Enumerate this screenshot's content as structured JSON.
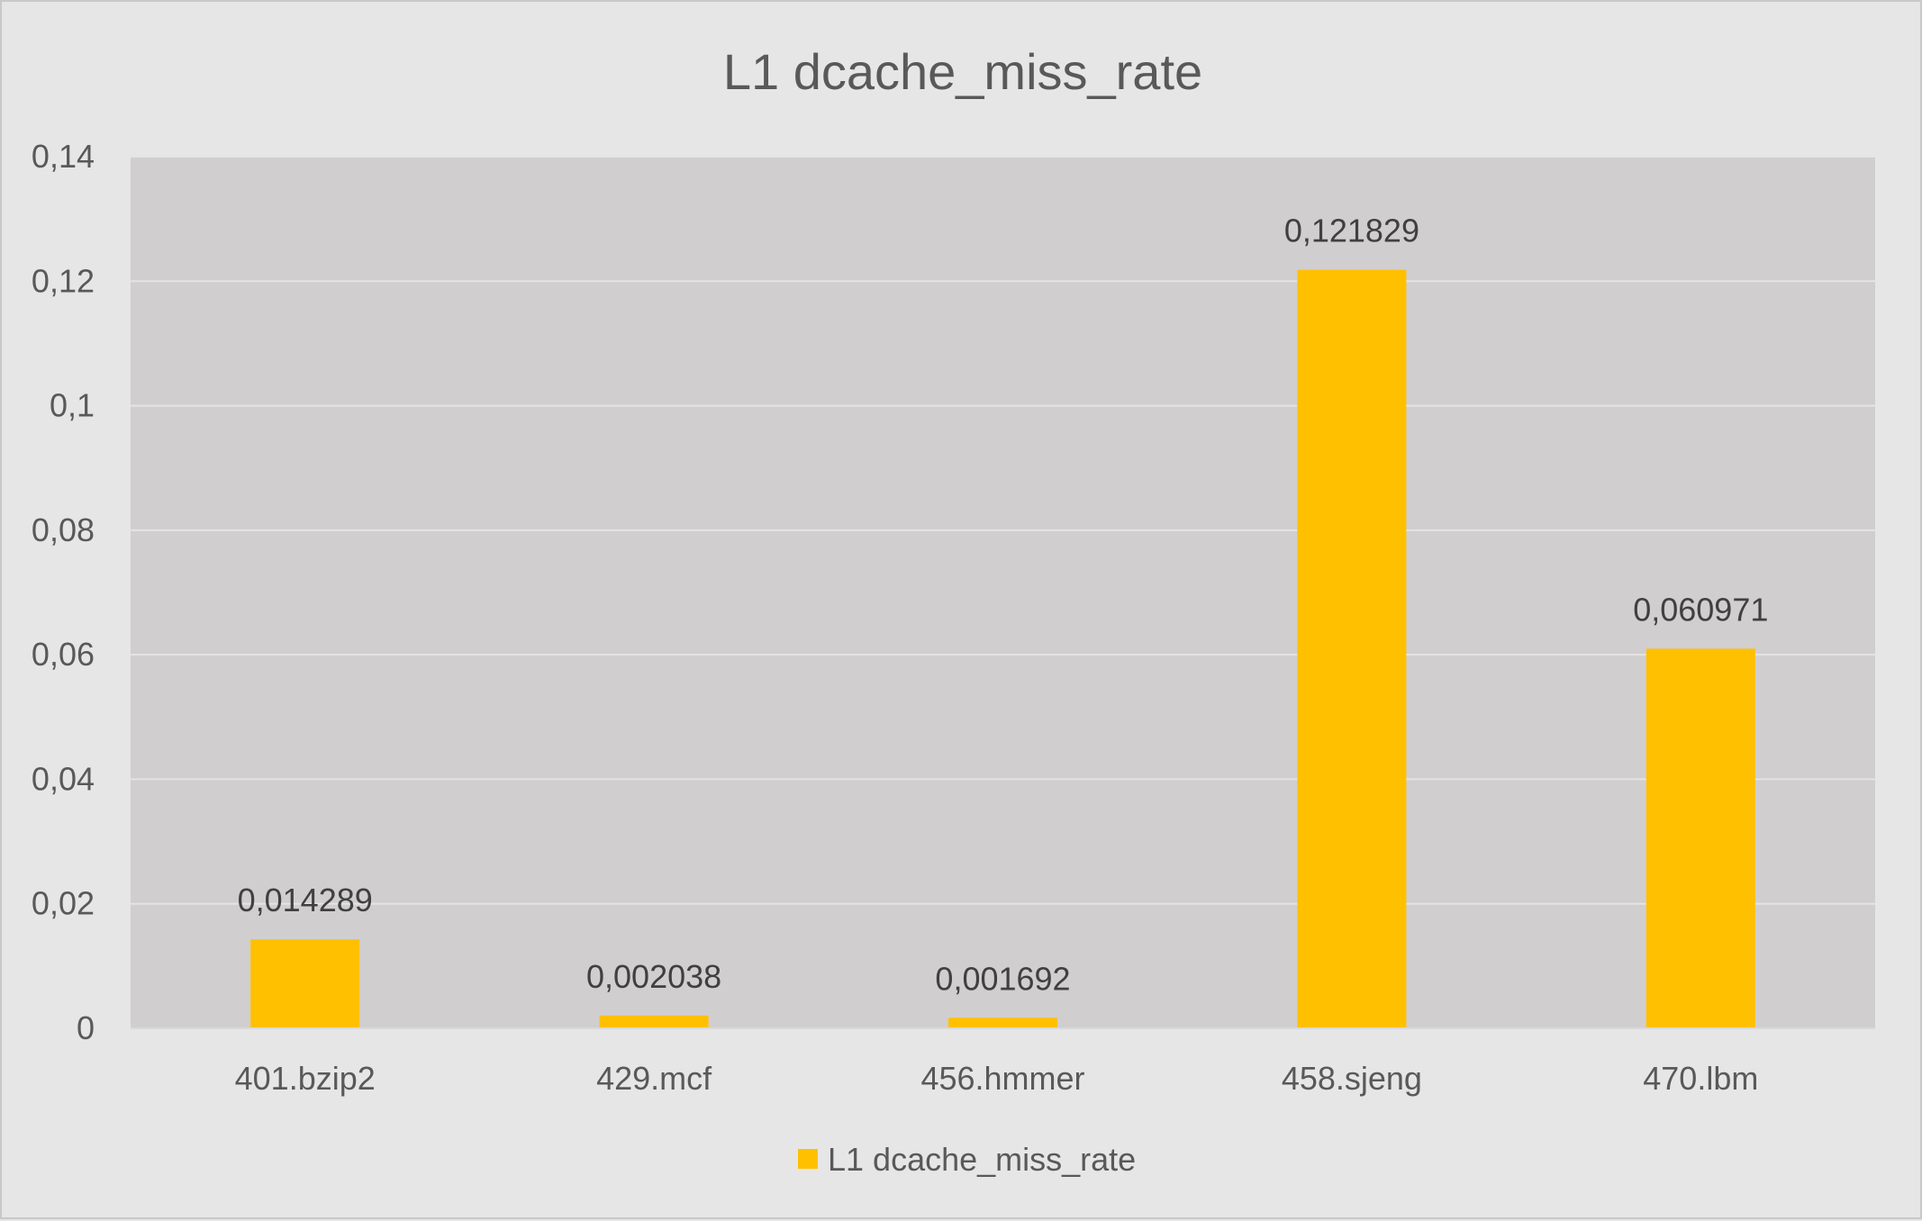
{
  "chart_data": {
    "type": "bar",
    "title": "L1 dcache_miss_rate",
    "xlabel": "",
    "ylabel": "",
    "categories": [
      "401.bzip2",
      "429.mcf",
      "456.hmmer",
      "458.sjeng",
      "470.lbm"
    ],
    "series": [
      {
        "name": "L1 dcache_miss_rate",
        "values": [
          0.014289,
          0.002038,
          0.001692,
          0.121829,
          0.060971
        ],
        "labels": [
          "0,014289",
          "0,002038",
          "0,001692",
          "0,121829",
          "0,060971"
        ],
        "color": "#ffc000"
      }
    ],
    "ylim": [
      0,
      0.14
    ],
    "yticks": [
      0,
      0.02,
      0.04,
      0.06,
      0.08,
      0.1,
      0.12,
      0.14
    ],
    "ytick_labels": [
      "0",
      "0,02",
      "0,04",
      "0,06",
      "0,08",
      "0,1",
      "0,12",
      "0,14"
    ],
    "grid": true,
    "legend": "bottom",
    "colors": {
      "background": "#e6e6e6",
      "plot_area": "#d0cecf",
      "gridline": "#e4e4e4",
      "bar": "#ffc000"
    }
  }
}
